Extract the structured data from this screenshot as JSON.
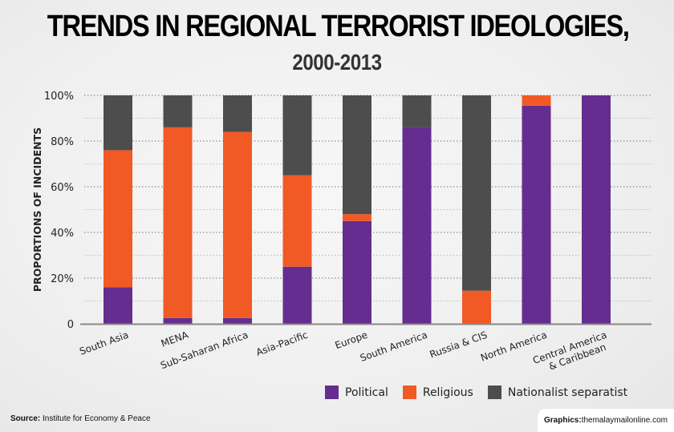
{
  "header": {
    "title": "TRENDS IN REGIONAL TERRORIST IDEOLOGIES,",
    "subtitle": "2000-2013"
  },
  "chart_data": {
    "type": "bar",
    "stacked": true,
    "title": "TRENDS IN REGIONAL TERRORIST IDEOLOGIES, 2000-2013",
    "xlabel": "",
    "ylabel": "PROPORTIONS OF INCIDENTS",
    "ylim": [
      0,
      100
    ],
    "yticks": [
      0,
      20,
      40,
      60,
      80,
      100
    ],
    "ytick_labels": [
      "0",
      "20%",
      "40%",
      "60%",
      "80%",
      "100%"
    ],
    "grid": true,
    "legend_position": "bottom-right",
    "categories": [
      "South Asia",
      "MENA",
      "Sub-Saharan Africa",
      "Asia-Pacific",
      "Europe",
      "South America",
      "Russia & CIS",
      "North America",
      "Central America\n& Caribbean"
    ],
    "category_lines": [
      [
        "South Asia"
      ],
      [
        "MENA"
      ],
      [
        "Sub-Saharan Africa"
      ],
      [
        "Asia-Pacific"
      ],
      [
        "Europe"
      ],
      [
        "South America"
      ],
      [
        "Russia & CIS"
      ],
      [
        "North America"
      ],
      [
        "Central America",
        "& Caribbean"
      ]
    ],
    "series": [
      {
        "name": "Political",
        "color": "#652d90",
        "values": [
          16,
          2.5,
          2.5,
          25,
          45,
          86,
          0,
          95.5,
          100
        ]
      },
      {
        "name": "Religious",
        "color": "#f15a24",
        "values": [
          60,
          83.5,
          81.5,
          40,
          3,
          0,
          14.5,
          4.5,
          0
        ]
      },
      {
        "name": "Nationalist separatist",
        "color": "#4d4d4d",
        "values": [
          24,
          14,
          16,
          35,
          52,
          14,
          85.5,
          0,
          0
        ]
      }
    ]
  },
  "legend": {
    "items": [
      {
        "label": "Political",
        "color": "#652d90"
      },
      {
        "label": "Religious",
        "color": "#f15a24"
      },
      {
        "label": "Nationalist separatist",
        "color": "#4d4d4d"
      }
    ]
  },
  "footer": {
    "source_label": "Source:",
    "source_text": " Institute for Economy & Peace",
    "credit_label": "Graphics:",
    "credit_text": " themalaymailonline.com"
  }
}
